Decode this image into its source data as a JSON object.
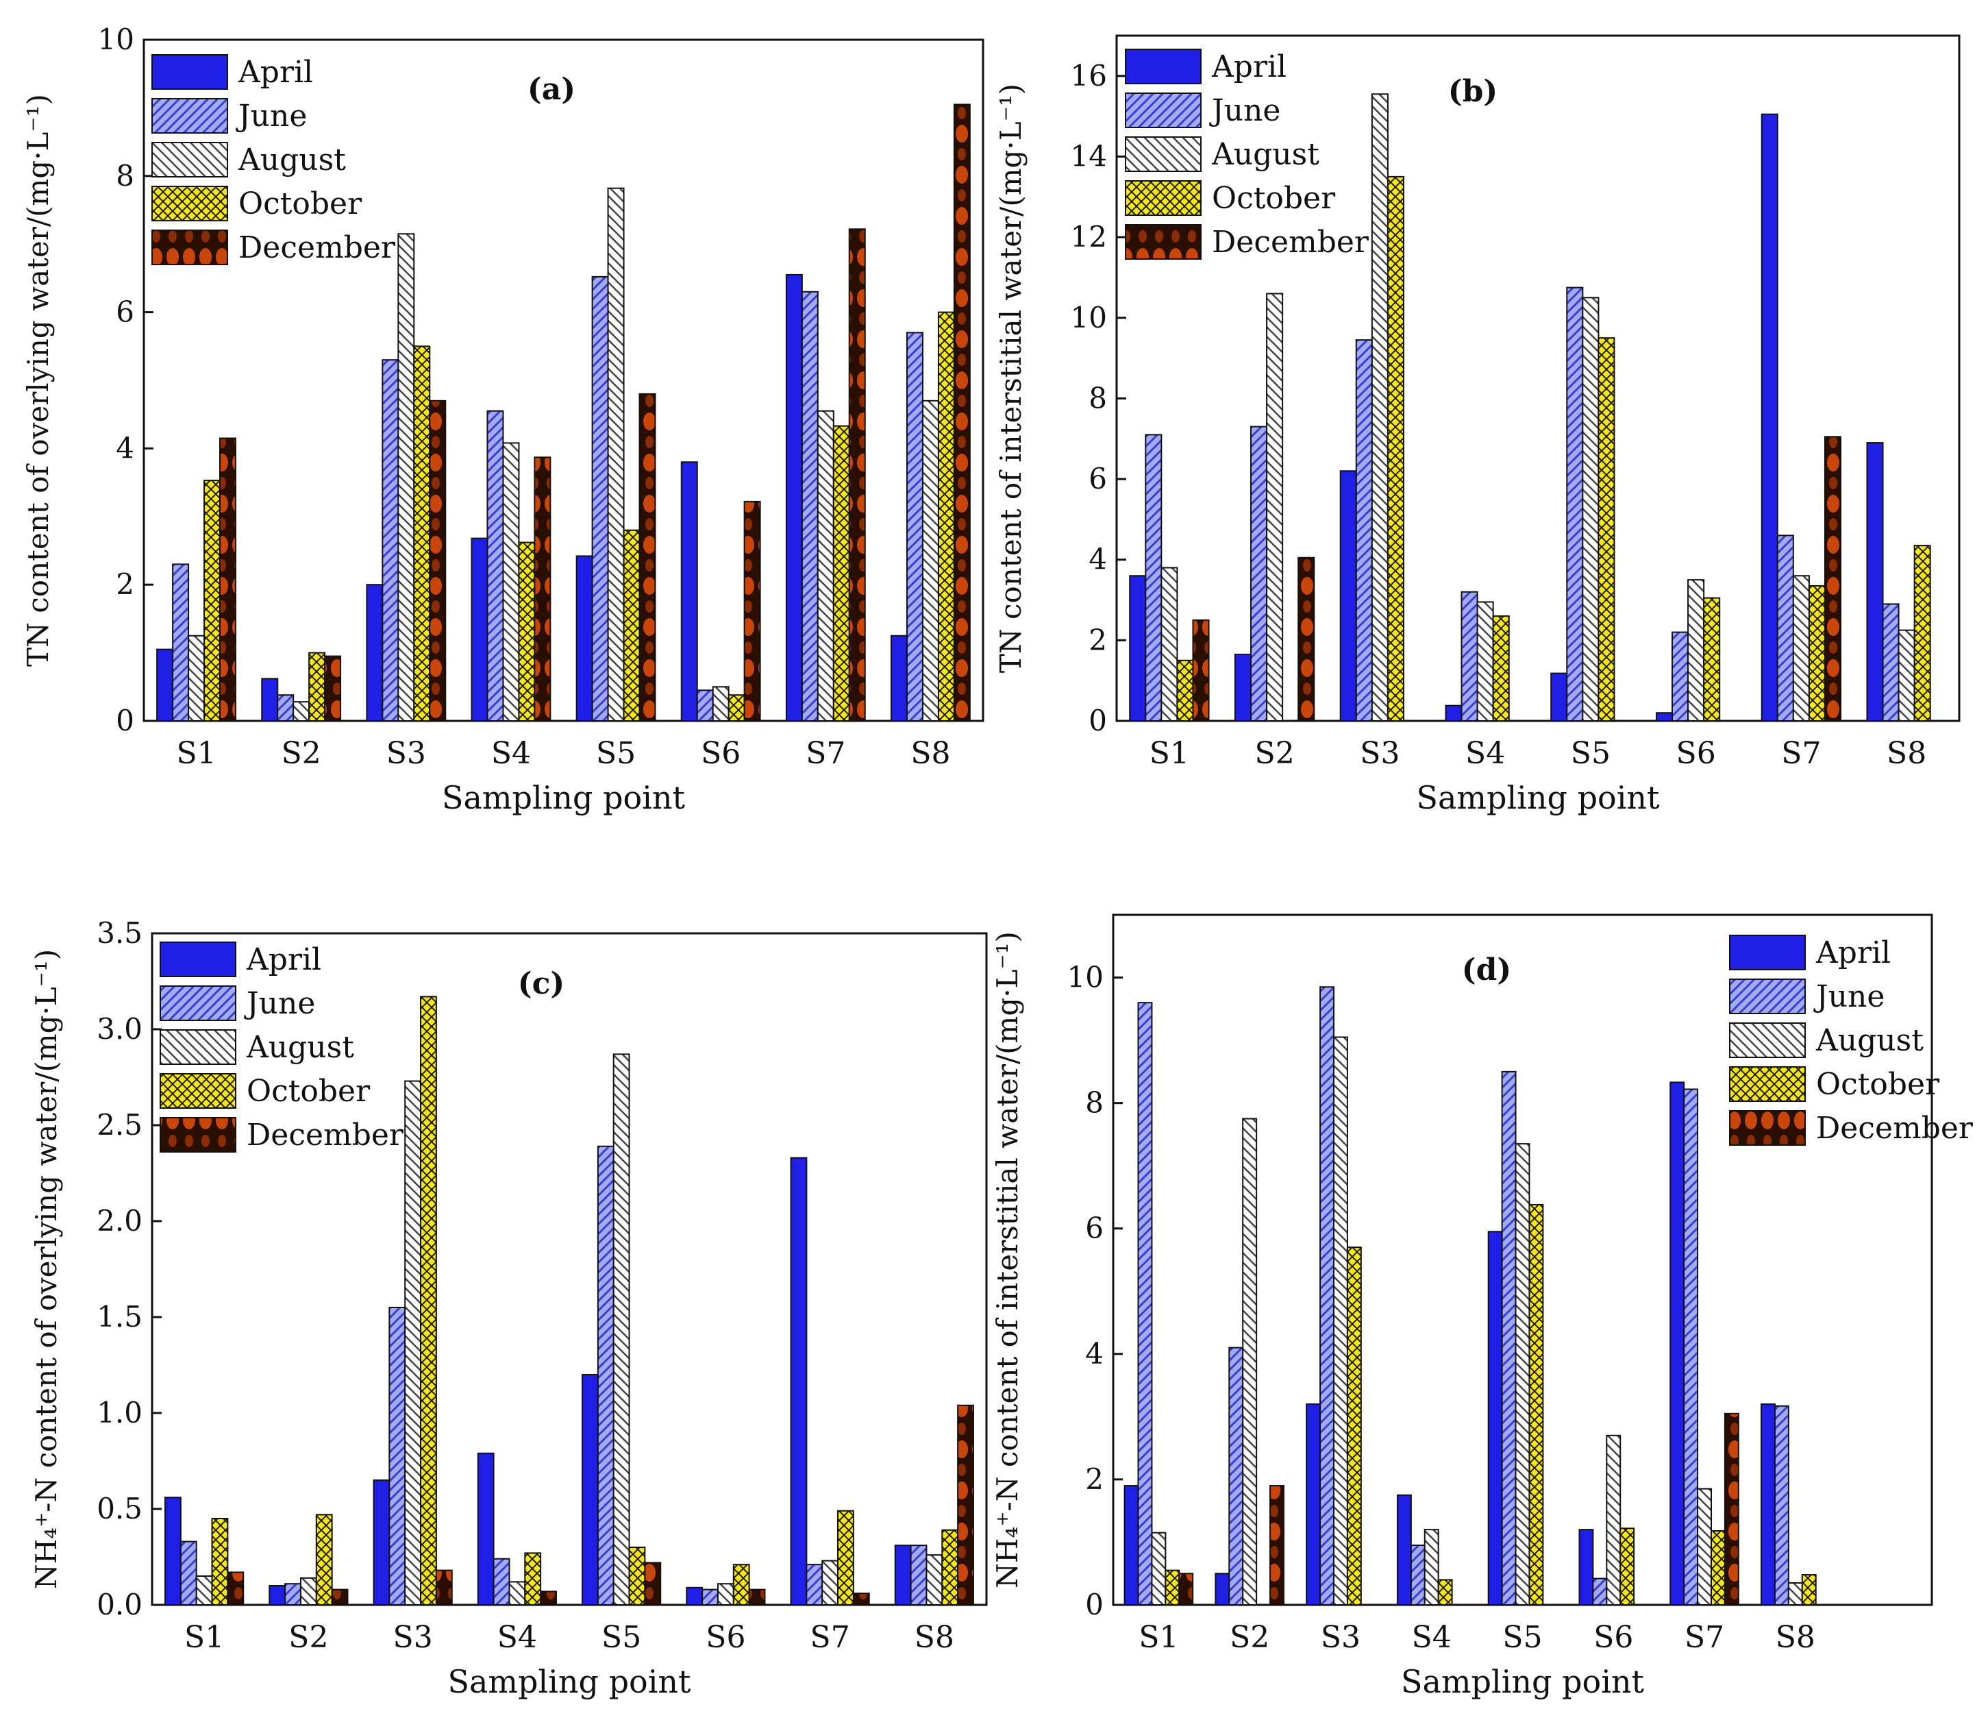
{
  "chart_data": [
    {
      "type": "bar",
      "panel_label": "(a)",
      "ylabel": "TN content of overlying water/(mg·L⁻¹)",
      "xlabel": "Sampling point",
      "ylim": [
        0,
        10
      ],
      "yticks": [
        0,
        2,
        4,
        6,
        8,
        10
      ],
      "ytick_labels": [
        "0",
        "2",
        "4",
        "6",
        "8",
        "10"
      ],
      "legend_position": "top-left",
      "categories": [
        "S1",
        "S2",
        "S3",
        "S4",
        "S5",
        "S6",
        "S7",
        "S8"
      ],
      "series": [
        {
          "name": "April",
          "values": [
            1.05,
            0.62,
            2.0,
            2.68,
            2.42,
            3.8,
            6.55,
            1.25
          ]
        },
        {
          "name": "June",
          "values": [
            2.3,
            0.38,
            5.3,
            4.55,
            6.52,
            0.45,
            6.3,
            5.7
          ]
        },
        {
          "name": "August",
          "values": [
            1.25,
            0.28,
            7.15,
            4.08,
            7.82,
            0.5,
            4.55,
            4.7
          ]
        },
        {
          "name": "October",
          "values": [
            3.53,
            1.0,
            5.5,
            2.62,
            2.8,
            0.38,
            4.33,
            6.0
          ]
        },
        {
          "name": "December",
          "values": [
            4.15,
            0.95,
            4.7,
            3.87,
            4.8,
            3.22,
            7.22,
            9.05
          ]
        }
      ]
    },
    {
      "type": "bar",
      "panel_label": "(b)",
      "ylabel": "TN content of interstitial water/(mg·L⁻¹)",
      "xlabel": "Sampling point",
      "ylim": [
        0,
        17
      ],
      "yticks": [
        0,
        2,
        4,
        6,
        8,
        10,
        12,
        14,
        16
      ],
      "ytick_labels": [
        "0",
        "2",
        "4",
        "6",
        "8",
        "10",
        "12",
        "14",
        "16"
      ],
      "legend_position": "top-left",
      "categories": [
        "S1",
        "S2",
        "S3",
        "S4",
        "S5",
        "S6",
        "S7",
        "S8"
      ],
      "series": [
        {
          "name": "April",
          "values": [
            3.6,
            1.65,
            6.2,
            0.38,
            1.18,
            0.2,
            15.05,
            6.9
          ]
        },
        {
          "name": "June",
          "values": [
            7.1,
            7.3,
            9.45,
            3.2,
            10.75,
            2.2,
            4.6,
            2.9
          ]
        },
        {
          "name": "August",
          "values": [
            3.8,
            10.6,
            15.55,
            2.95,
            10.5,
            3.5,
            3.6,
            2.25
          ]
        },
        {
          "name": "October",
          "values": [
            1.5,
            0,
            13.5,
            2.6,
            9.5,
            3.05,
            3.35,
            4.35
          ]
        },
        {
          "name": "December",
          "values": [
            2.5,
            4.05,
            0,
            0,
            0,
            0,
            7.05,
            0
          ]
        }
      ]
    },
    {
      "type": "bar",
      "panel_label": "(c)",
      "ylabel": "NH₄⁺-N content of overlying water/(mg·L⁻¹)",
      "xlabel": "Sampling point",
      "ylim": [
        0,
        3.5
      ],
      "yticks": [
        0,
        0.5,
        1.0,
        1.5,
        2.0,
        2.5,
        3.0,
        3.5
      ],
      "ytick_labels": [
        "0.0",
        "0.5",
        "1.0",
        "1.5",
        "2.0",
        "2.5",
        "3.0",
        "3.5"
      ],
      "legend_position": "top-left",
      "categories": [
        "S1",
        "S2",
        "S3",
        "S4",
        "S5",
        "S6",
        "S7",
        "S8"
      ],
      "series": [
        {
          "name": "April",
          "values": [
            0.56,
            0.1,
            0.65,
            0.79,
            1.2,
            0.09,
            2.33,
            0.31
          ]
        },
        {
          "name": "June",
          "values": [
            0.33,
            0.11,
            1.55,
            0.24,
            2.39,
            0.08,
            0.21,
            0.31
          ]
        },
        {
          "name": "August",
          "values": [
            0.15,
            0.14,
            2.73,
            0.12,
            2.87,
            0.11,
            0.23,
            0.26
          ]
        },
        {
          "name": "October",
          "values": [
            0.45,
            0.47,
            3.17,
            0.27,
            0.3,
            0.21,
            0.49,
            0.39
          ]
        },
        {
          "name": "December",
          "values": [
            0.17,
            0.08,
            0.18,
            0.07,
            0.22,
            0.08,
            0.06,
            1.04
          ]
        }
      ]
    },
    {
      "type": "bar",
      "panel_label": "(d)",
      "ylabel": "NH₄⁺-N content of interstitial water/(mg·L⁻¹)",
      "xlabel": "Sampling point",
      "ylim": [
        0,
        11
      ],
      "yticks": [
        0,
        2,
        4,
        6,
        8,
        10
      ],
      "ytick_labels": [
        "0",
        "2",
        "4",
        "6",
        "8",
        "10"
      ],
      "legend_position": "top-right",
      "categories": [
        "S1",
        "S2",
        "S3",
        "S4",
        "S5",
        "S6",
        "S7",
        "S8"
      ],
      "series": [
        {
          "name": "April",
          "values": [
            1.9,
            0.5,
            3.2,
            1.75,
            5.95,
            1.2,
            8.33,
            3.2
          ]
        },
        {
          "name": "June",
          "values": [
            9.6,
            4.1,
            9.85,
            0.95,
            8.5,
            0.42,
            8.22,
            3.17
          ]
        },
        {
          "name": "August",
          "values": [
            1.15,
            7.75,
            9.05,
            1.2,
            7.35,
            2.7,
            1.85,
            0.35
          ]
        },
        {
          "name": "October",
          "values": [
            0.55,
            0,
            5.7,
            0.4,
            6.38,
            1.22,
            1.18,
            0.48
          ]
        },
        {
          "name": "December",
          "values": [
            0.5,
            1.9,
            0,
            0,
            0,
            0,
            3.05,
            0
          ]
        }
      ]
    }
  ]
}
